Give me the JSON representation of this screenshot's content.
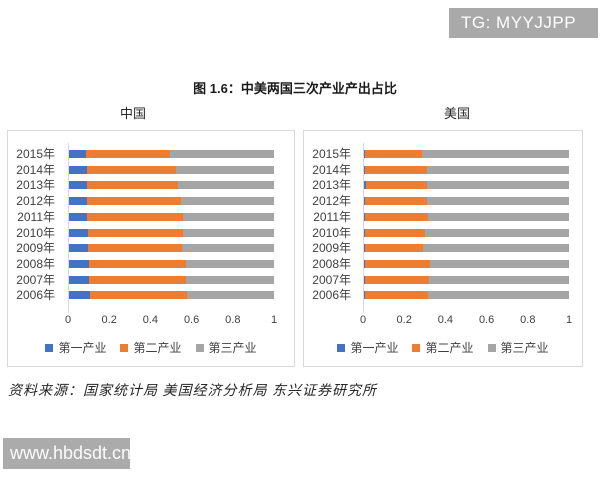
{
  "watermarks": {
    "tg_badge": "TG: MYYJJPP",
    "site": "www.hbdsdt.cn"
  },
  "figure_title": "图 1.6：中美两国三次产业产出占比",
  "source_note": "资料来源：国家统计局 美国经济分析局  东兴证券研究所",
  "colors": {
    "primary_industry": "#4472C4",
    "secondary_industry": "#ED7D31",
    "tertiary_industry": "#A5A5A5",
    "box_border": "#D9D9D9",
    "badge_bg": "#A9A9A9"
  },
  "chart_data": [
    {
      "type": "bar",
      "orientation": "horizontal",
      "stacked": true,
      "title": "中国",
      "categories": [
        "2015年",
        "2014年",
        "2013年",
        "2012年",
        "2011年",
        "2010年",
        "2009年",
        "2008年",
        "2007年",
        "2006年"
      ],
      "series": [
        {
          "name": "第一产业",
          "color": "#4472C4",
          "values": [
            0.088,
            0.091,
            0.093,
            0.094,
            0.094,
            0.095,
            0.098,
            0.103,
            0.103,
            0.106
          ]
        },
        {
          "name": "第二产业",
          "color": "#ED7D31",
          "values": [
            0.409,
            0.431,
            0.44,
            0.453,
            0.465,
            0.465,
            0.457,
            0.469,
            0.468,
            0.473
          ]
        },
        {
          "name": "第三产业",
          "color": "#A5A5A5",
          "values": [
            0.503,
            0.478,
            0.467,
            0.453,
            0.441,
            0.44,
            0.445,
            0.428,
            0.429,
            0.421
          ]
        }
      ],
      "xlim": [
        0,
        1
      ],
      "xticks": [
        "0",
        "0.2",
        "0.4",
        "0.6",
        "0.8",
        "1"
      ],
      "legend_position": "bottom",
      "grid": false
    },
    {
      "type": "bar",
      "orientation": "horizontal",
      "stacked": true,
      "title": "美国",
      "categories": [
        "2015年",
        "2014年",
        "2013年",
        "2012年",
        "2011年",
        "2010年",
        "2009年",
        "2008年",
        "2007年",
        "2006年"
      ],
      "series": [
        {
          "name": "第一产业",
          "color": "#4472C4",
          "values": [
            0.011,
            0.012,
            0.013,
            0.012,
            0.012,
            0.011,
            0.01,
            0.012,
            0.011,
            0.012
          ]
        },
        {
          "name": "第二产业",
          "color": "#ED7D31",
          "values": [
            0.275,
            0.299,
            0.298,
            0.299,
            0.303,
            0.289,
            0.28,
            0.314,
            0.309,
            0.305
          ]
        },
        {
          "name": "第三产业",
          "color": "#A5A5A5",
          "values": [
            0.714,
            0.689,
            0.689,
            0.689,
            0.685,
            0.7,
            0.71,
            0.674,
            0.68,
            0.683
          ]
        }
      ],
      "xlim": [
        0,
        1
      ],
      "xticks": [
        "0",
        "0.2",
        "0.4",
        "0.6",
        "0.8",
        "1"
      ],
      "legend_position": "bottom",
      "grid": false
    }
  ]
}
